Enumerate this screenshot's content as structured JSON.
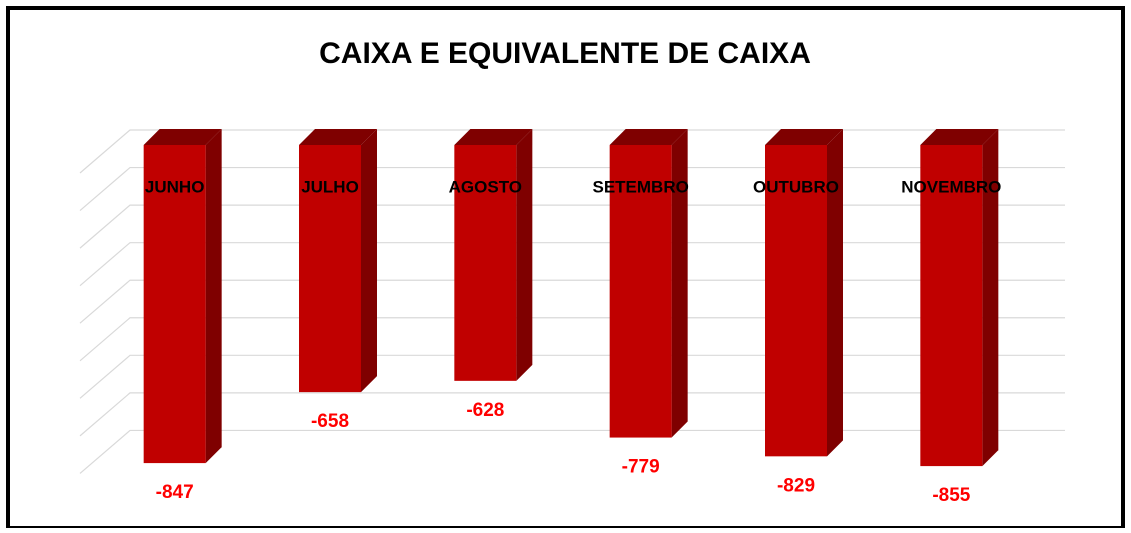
{
  "chart_data": {
    "type": "bar3d",
    "title": "CAIXA E EQUIVALENTE DE CAIXA",
    "categories": [
      "JUNHO",
      "JULHO",
      "AGOSTO",
      "SETEMBRO",
      "OUTUBRO",
      "NOVEMBRO"
    ],
    "values": [
      -847,
      -658,
      -628,
      -779,
      -829,
      -855
    ],
    "color": "#c00000",
    "side_color": "#7f0000",
    "label_color": "#ff0000",
    "ylim": [
      -900,
      0
    ],
    "yticks": [
      -800,
      -700,
      -600,
      -500,
      -400,
      -300,
      -200,
      -100,
      0
    ],
    "grid": true
  }
}
